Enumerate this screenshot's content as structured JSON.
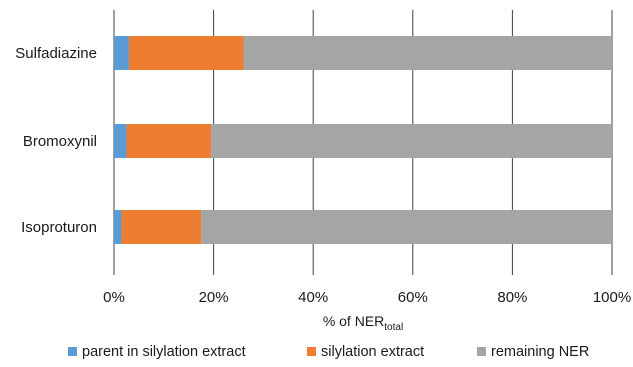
{
  "chart_data": {
    "type": "bar",
    "orientation": "horizontal",
    "stacked": true,
    "categories": [
      "Sulfadiazine",
      "Bromoxynil",
      "Isoproturon"
    ],
    "series": [
      {
        "name": "parent in silylation extract",
        "values": [
          3,
          2.5,
          1.5
        ],
        "color": "#5b9bd5"
      },
      {
        "name": "silylation extract",
        "values": [
          23,
          17,
          16
        ],
        "color": "#ed7d31"
      },
      {
        "name": "remaining NER",
        "values": [
          74,
          80.5,
          82.5
        ],
        "color": "#a5a5a5"
      }
    ],
    "xlim": [
      0,
      100
    ],
    "x_ticks": [
      "0%",
      "20%",
      "40%",
      "60%",
      "80%",
      "100%"
    ],
    "xlabel": {
      "main": "% of NER",
      "subscript": "total"
    },
    "ylabel": "",
    "title": "",
    "grid": "vertical",
    "legend_position": "bottom"
  }
}
